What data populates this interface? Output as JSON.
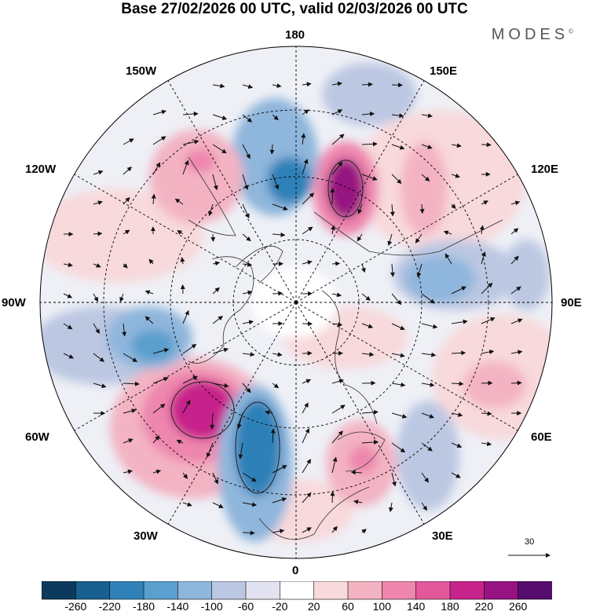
{
  "title": "Base 27/02/2026 00 UTC, valid 02/03/2026 00 UTC",
  "brand": "MODES",
  "brand_mark": "©",
  "longitude_labels": {
    "top": "180",
    "top_left": "150W",
    "top_right": "150E",
    "upper_left": "120W",
    "upper_right": "120E",
    "left": "90W",
    "right": "90E",
    "lower_left": "60W",
    "lower_right": "60E",
    "bottom_left": "30W",
    "bottom_right": "30E",
    "bottom": "0"
  },
  "reference_vector": {
    "label": "30"
  },
  "colorbar": {
    "ticks": [
      "-260",
      "-220",
      "-180",
      "-140",
      "-100",
      "-60",
      "-20",
      "20",
      "60",
      "100",
      "140",
      "180",
      "220",
      "260"
    ],
    "colors": [
      "#0b3a5c",
      "#18608f",
      "#2f81b8",
      "#5a9fcd",
      "#8fb6dc",
      "#bcc7e2",
      "#e3e2f0",
      "#ffffff",
      "#f8d9dc",
      "#f3b3c3",
      "#ee86ad",
      "#e2589a",
      "#c7248b",
      "#961381",
      "#560d6e"
    ]
  },
  "map": {
    "anomalies": [
      {
        "id": "pos-north-atlantic",
        "sign": "positive",
        "max_value": 260
      },
      {
        "id": "neg-europe-west",
        "sign": "negative",
        "min_value": -220
      },
      {
        "id": "pos-bering",
        "sign": "positive",
        "max_value": 260
      },
      {
        "id": "neg-aleutian",
        "sign": "negative",
        "min_value": -180
      },
      {
        "id": "pos-alaska",
        "sign": "positive",
        "max_value": 180
      },
      {
        "id": "neg-canada",
        "sign": "negative",
        "min_value": -180
      },
      {
        "id": "neg-siberia",
        "sign": "negative",
        "min_value": -140
      },
      {
        "id": "pos-scandinavia",
        "sign": "positive",
        "max_value": 180
      },
      {
        "id": "pos-asia",
        "sign": "positive",
        "max_value": 140
      },
      {
        "id": "neg-east-europe",
        "sign": "negative",
        "min_value": -100
      }
    ]
  }
}
